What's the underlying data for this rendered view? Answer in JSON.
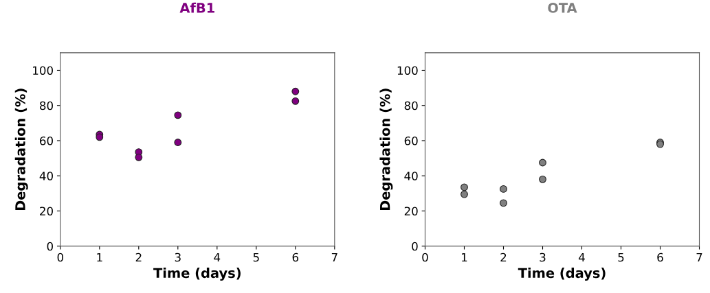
{
  "chart_data": [
    {
      "type": "scatter",
      "title": "AfB1",
      "xlabel": "Time (days)",
      "ylabel": "Degradation (%)",
      "xlim": [
        0,
        7
      ],
      "xticks": [
        0,
        1,
        2,
        3,
        4,
        5,
        6,
        7
      ],
      "ylim": [
        0,
        110
      ],
      "yticks": [
        0,
        20,
        40,
        60,
        80,
        100
      ],
      "grid": false,
      "legend": false,
      "marker": "circle",
      "series": [
        {
          "color": "#800080",
          "x": [
            1,
            1,
            2,
            2,
            3,
            3,
            6,
            6
          ],
          "values": [
            63.5,
            62,
            53.5,
            50.5,
            74.5,
            59,
            88,
            82.5
          ]
        }
      ]
    },
    {
      "type": "scatter",
      "title": "OTA",
      "xlabel": "Time (days)",
      "ylabel": "Degradation (%)",
      "xlim": [
        0,
        7
      ],
      "xticks": [
        0,
        1,
        2,
        3,
        4,
        5,
        6,
        7
      ],
      "ylim": [
        0,
        110
      ],
      "yticks": [
        0,
        20,
        40,
        60,
        80,
        100
      ],
      "grid": false,
      "legend": false,
      "marker": "circle",
      "series": [
        {
          "color": "#808080",
          "x": [
            1,
            1,
            2,
            2,
            3,
            3,
            6,
            6
          ],
          "values": [
            33.5,
            29.5,
            32.5,
            24.5,
            47.5,
            38,
            59,
            58
          ]
        }
      ]
    }
  ]
}
